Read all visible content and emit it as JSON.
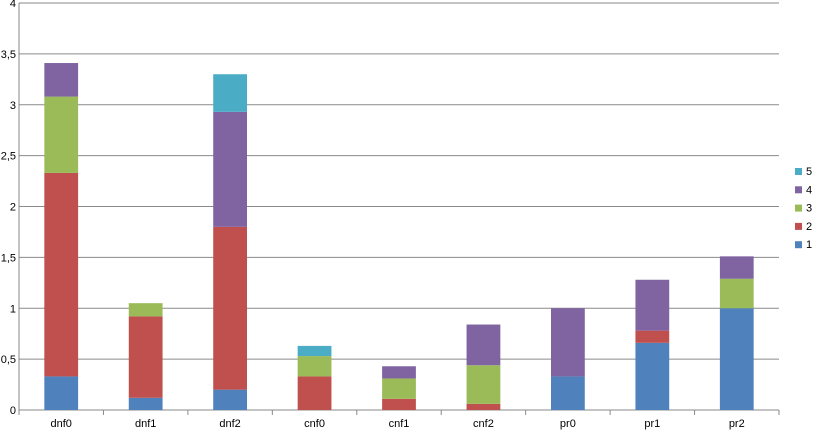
{
  "chart_data": {
    "type": "bar",
    "stacked": true,
    "categories": [
      "dnf0",
      "dnf1",
      "dnf2",
      "cnf0",
      "cnf1",
      "cnf2",
      "pr0",
      "pr1",
      "pr2"
    ],
    "series": [
      {
        "name": "1",
        "color": "#4F81BD",
        "values": [
          0.33,
          0.12,
          0.2,
          0.0,
          0.0,
          0.0,
          0.33,
          0.66,
          1.0
        ]
      },
      {
        "name": "2",
        "color": "#C0504D",
        "values": [
          2.0,
          0.8,
          1.6,
          0.33,
          0.11,
          0.06,
          0.0,
          0.12,
          0.0
        ]
      },
      {
        "name": "3",
        "color": "#9BBB59",
        "values": [
          0.75,
          0.13,
          0.0,
          0.2,
          0.2,
          0.38,
          0.0,
          0.0,
          0.29
        ]
      },
      {
        "name": "4",
        "color": "#8064A2",
        "values": [
          0.33,
          0.0,
          1.13,
          0.0,
          0.12,
          0.4,
          0.67,
          0.5,
          0.22
        ]
      },
      {
        "name": "5",
        "color": "#4BACC6",
        "values": [
          0.0,
          0.0,
          0.37,
          0.1,
          0.0,
          0.0,
          0.0,
          0.0,
          0.0
        ]
      }
    ],
    "y_ticks": [
      "0",
      "0,5",
      "1",
      "1,5",
      "2",
      "2,5",
      "3",
      "3,5",
      "4"
    ],
    "ylim": [
      0,
      4
    ],
    "grid": true,
    "legend_position": "right"
  }
}
